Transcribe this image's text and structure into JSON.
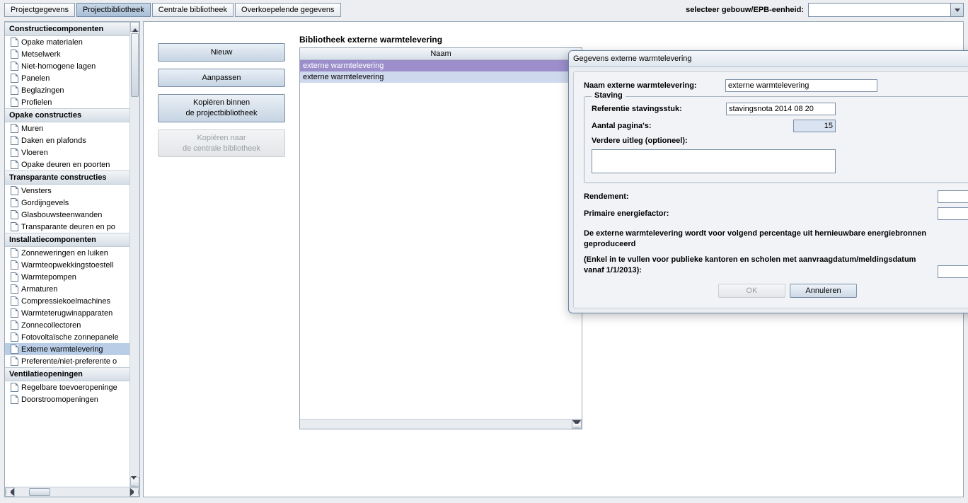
{
  "tabs": {
    "projectgegevens": "Projectgegevens",
    "projectbibliotheek": "Projectbibliotheek",
    "centrale": "Centrale bibliotheek",
    "overkoepelende": "Overkoepelende gegevens"
  },
  "selector": {
    "label": "selecteer gebouw/EPB-eenheid:"
  },
  "sidebar": {
    "groups": [
      {
        "header": "Constructiecomponenten",
        "items": [
          "Opake materialen",
          "Metselwerk",
          "Niet-homogene lagen",
          "Panelen",
          "Beglazingen",
          "Profielen"
        ]
      },
      {
        "header": "Opake constructies",
        "items": [
          "Muren",
          "Daken en plafonds",
          "Vloeren",
          "Opake deuren en poorten"
        ]
      },
      {
        "header": "Transparante constructies",
        "items": [
          "Vensters",
          "Gordijngevels",
          "Glasbouwsteenwanden",
          "Transparante deuren en po"
        ]
      },
      {
        "header": "Installatiecomponenten",
        "items": [
          "Zonneweringen en luiken",
          "Warmteopwekkingstoestell",
          "Warmtepompen",
          "Armaturen",
          "Compressiekoelmachines",
          "Warmteterugwinapparaten",
          "Zonnecollectoren",
          "Fotovoltaïsche zonnepanele",
          "Externe warmtelevering",
          "Preferente/niet-preferente o"
        ]
      },
      {
        "header": "Ventilatieopeningen",
        "items": [
          "Regelbare toevoeropeninge",
          "Doorstroomopeningen"
        ]
      }
    ],
    "selected": "Externe warmtelevering"
  },
  "buttons": {
    "nieuw": "Nieuw",
    "aanpassen": "Aanpassen",
    "kopieren_binnen_l1": "Kopiëren binnen",
    "kopieren_binnen_l2": "de projectbibliotheek",
    "kopieren_naar_l1": "Kopiëren naar",
    "kopieren_naar_l2": "de centrale bibliotheek"
  },
  "library": {
    "title": "Bibliotheek externe warmtelevering",
    "column": "Naam",
    "rows": [
      "externe warmtelevering",
      "externe warmtelevering"
    ]
  },
  "dialog": {
    "title": "Gegevens externe warmtelevering",
    "naam_label": "Naam externe warmtelevering:",
    "naam_value": "externe warmtelevering",
    "staving_legend": "Staving",
    "ref_label": "Referentie stavingsstuk:",
    "ref_value": "stavingsnota 2014 08 20",
    "pag_label": "Aantal pagina's:",
    "pag_value": "15",
    "uitleg_label": "Verdere uitleg (optioneel):",
    "rendement_label": "Rendement:",
    "primair_label": "Primaire energiefactor:",
    "note1": "De externe warmtelevering wordt voor volgend percentage uit hernieuwbare energiebronnen geproduceerd",
    "note2": "(Enkel in te vullen voor publieke kantoren en scholen met aanvraagdatum/meldingsdatum vanaf 1/1/2013):",
    "unit": "[-]",
    "ok": "OK",
    "annuleren": "Annuleren"
  }
}
